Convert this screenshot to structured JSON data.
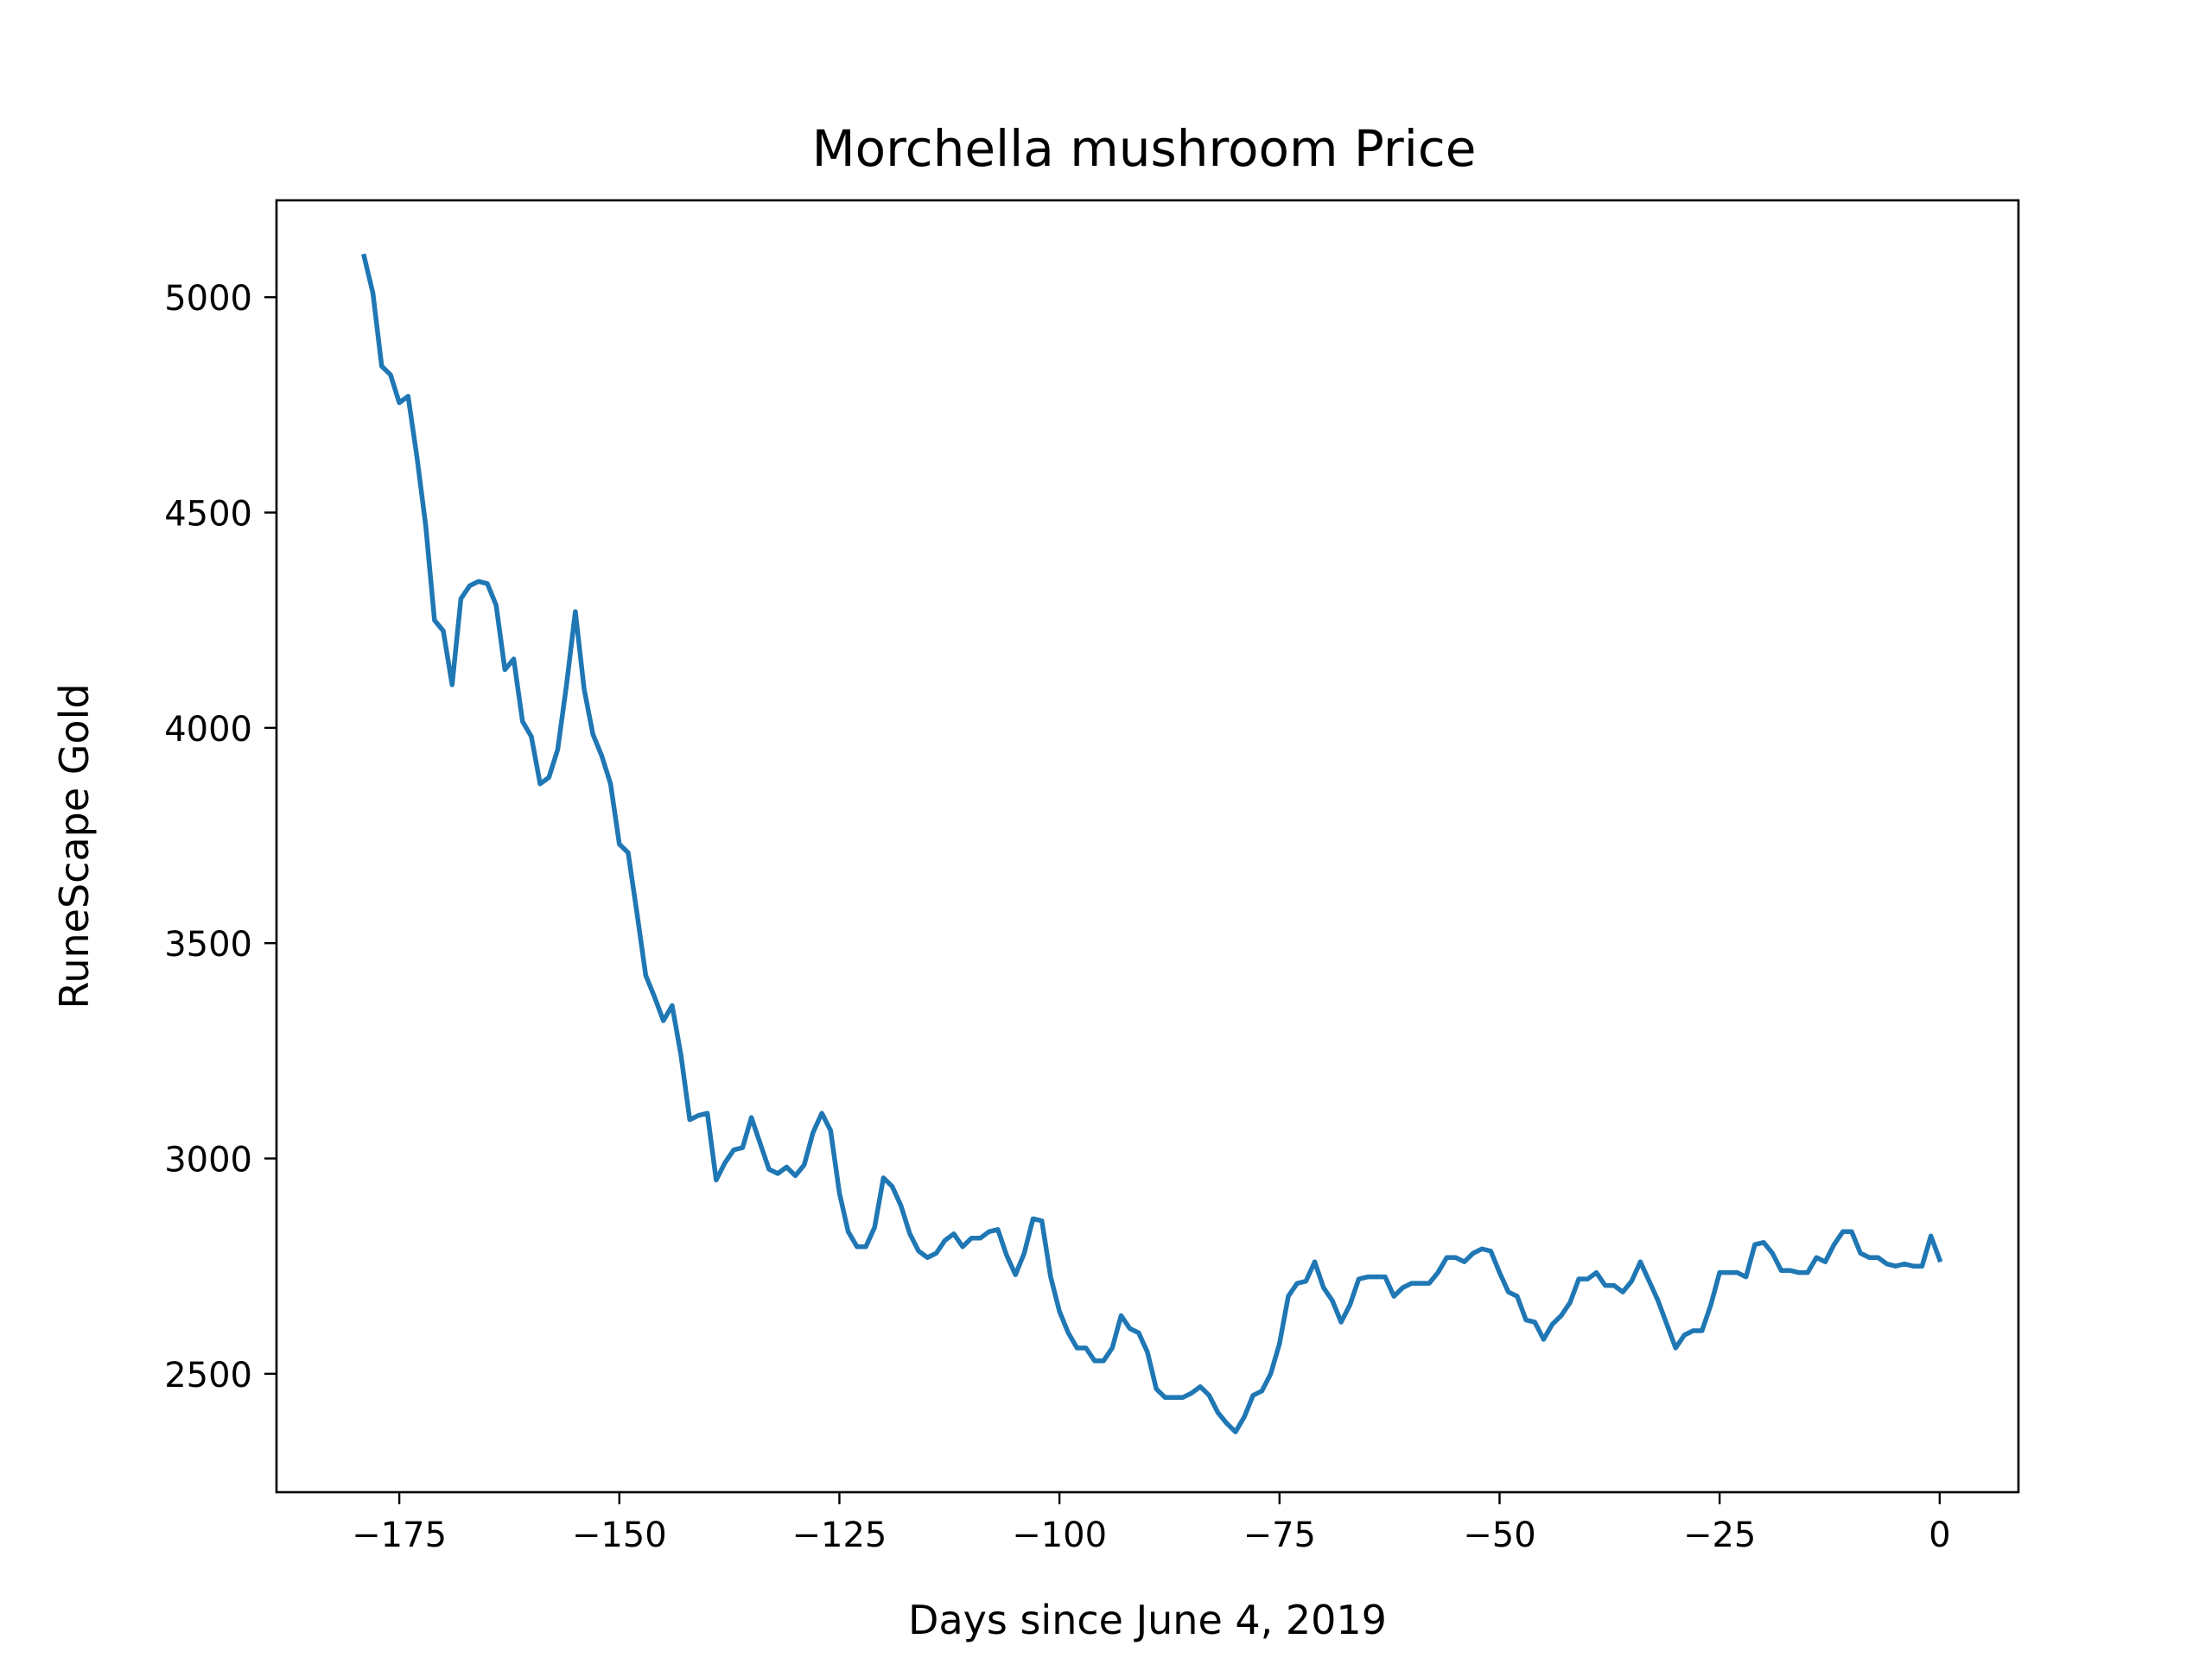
{
  "chart_data": {
    "type": "line",
    "title": "Morchella mushroom Price",
    "xlabel": "Days since June 4, 2019",
    "ylabel": "RuneScape Gold",
    "xlim": [
      -188.95,
      8.95
    ],
    "ylim": [
      2225,
      5225
    ],
    "xticks": [
      -175,
      -150,
      -125,
      -100,
      -75,
      -50,
      -25,
      0
    ],
    "xtick_labels": [
      "−175",
      "−150",
      "−125",
      "−100",
      "−75",
      "−50",
      "−25",
      "0"
    ],
    "yticks": [
      2500,
      3000,
      3500,
      4000,
      4500,
      5000
    ],
    "ytick_labels": [
      "2500",
      "3000",
      "3500",
      "4000",
      "4500",
      "5000"
    ],
    "grid": false,
    "series": [
      {
        "color": "#1f77b4",
        "x_start": -179,
        "x_step": 1,
        "values": [
          5095,
          5010,
          4840,
          4820,
          4755,
          4770,
          4630,
          4470,
          4250,
          4225,
          4100,
          4300,
          4330,
          4340,
          4335,
          4285,
          4135,
          4160,
          4015,
          3980,
          3870,
          3885,
          3950,
          4100,
          4270,
          4090,
          3985,
          3935,
          3870,
          3730,
          3710,
          3570,
          3425,
          3375,
          3320,
          3355,
          3240,
          3090,
          3100,
          3105,
          2950,
          2990,
          3020,
          3025,
          3095,
          3035,
          2975,
          2965,
          2980,
          2960,
          2985,
          3060,
          3105,
          3065,
          2920,
          2830,
          2795,
          2795,
          2840,
          2955,
          2935,
          2890,
          2825,
          2785,
          2770,
          2780,
          2810,
          2825,
          2795,
          2815,
          2815,
          2830,
          2835,
          2775,
          2730,
          2780,
          2860,
          2855,
          2725,
          2645,
          2595,
          2560,
          2560,
          2530,
          2530,
          2560,
          2635,
          2605,
          2595,
          2550,
          2465,
          2445,
          2445,
          2445,
          2455,
          2470,
          2450,
          2410,
          2385,
          2365,
          2400,
          2450,
          2460,
          2500,
          2570,
          2680,
          2710,
          2715,
          2760,
          2700,
          2670,
          2620,
          2660,
          2720,
          2725,
          2725,
          2725,
          2680,
          2700,
          2710,
          2710,
          2710,
          2735,
          2770,
          2770,
          2760,
          2780,
          2790,
          2785,
          2735,
          2690,
          2680,
          2625,
          2620,
          2580,
          2615,
          2635,
          2665,
          2720,
          2720,
          2735,
          2705,
          2705,
          2690,
          2715,
          2760,
          2715,
          2670,
          2615,
          2560,
          2590,
          2600,
          2600,
          2660,
          2735,
          2735,
          2735,
          2725,
          2800,
          2805,
          2780,
          2740,
          2740,
          2735,
          2735,
          2770,
          2760,
          2800,
          2830,
          2830,
          2780,
          2770,
          2770,
          2755,
          2750,
          2755,
          2750,
          2750,
          2820,
          2765
        ]
      }
    ]
  }
}
